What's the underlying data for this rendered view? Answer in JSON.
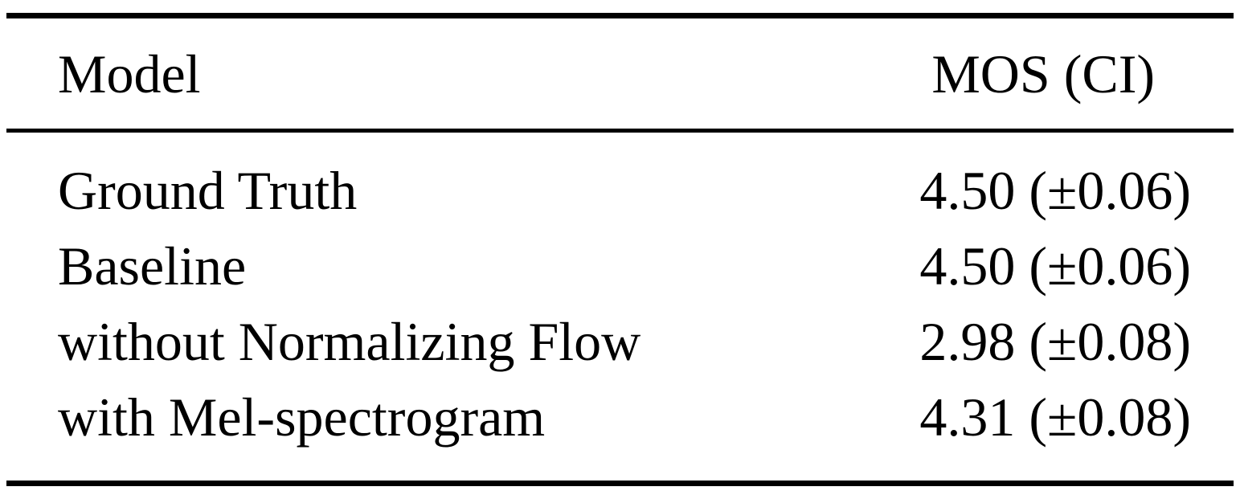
{
  "table": {
    "headers": [
      "Model",
      "MOS (CI)"
    ],
    "rows": [
      {
        "model": "Ground Truth",
        "mos": "4.50 (±0.06)"
      },
      {
        "model": "Baseline",
        "mos": "4.50 (±0.06)"
      },
      {
        "model": "without Normalizing Flow",
        "mos": "2.98 (±0.08)"
      },
      {
        "model": "with Mel-spectrogram",
        "mos": "4.31 (±0.08)"
      }
    ]
  }
}
